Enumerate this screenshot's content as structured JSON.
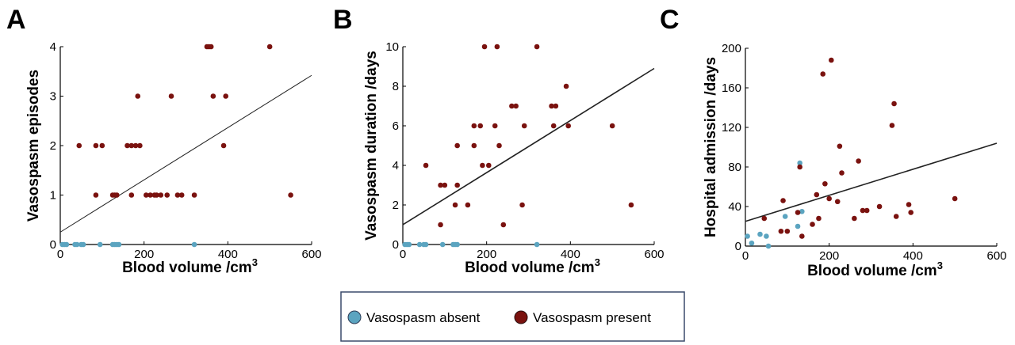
{
  "colors": {
    "absent": "#5BA4C0",
    "present": "#7A120F",
    "axis": "#000000",
    "legend_border": "#3A4A6B"
  },
  "legend": {
    "absent_label": "Vasospasm absent",
    "present_label": "Vasospasm present"
  },
  "chart_data": [
    {
      "panel": "A",
      "type": "scatter",
      "xlabel": "Blood volume /cm",
      "xlabel_sup": "3",
      "ylabel": "Vasospasm episodes",
      "xlim": [
        0,
        600
      ],
      "ylim": [
        0,
        4
      ],
      "xticks": [
        0,
        200,
        400,
        600
      ],
      "yticks": [
        0,
        1,
        2,
        3,
        4
      ],
      "fit_line": [
        [
          0,
          0.25
        ],
        [
          600,
          3.42
        ]
      ],
      "absent": [
        [
          5,
          0
        ],
        [
          10,
          0
        ],
        [
          15,
          0
        ],
        [
          35,
          0
        ],
        [
          40,
          0
        ],
        [
          50,
          0
        ],
        [
          55,
          0
        ],
        [
          95,
          0
        ],
        [
          125,
          0
        ],
        [
          130,
          0
        ],
        [
          135,
          0
        ],
        [
          140,
          0
        ],
        [
          320,
          0
        ]
      ],
      "present": [
        [
          45,
          2
        ],
        [
          85,
          1
        ],
        [
          85,
          2
        ],
        [
          100,
          2
        ],
        [
          125,
          1
        ],
        [
          130,
          1
        ],
        [
          135,
          1
        ],
        [
          160,
          2
        ],
        [
          170,
          1
        ],
        [
          170,
          2
        ],
        [
          180,
          2
        ],
        [
          185,
          3
        ],
        [
          190,
          2
        ],
        [
          205,
          1
        ],
        [
          215,
          1
        ],
        [
          225,
          1
        ],
        [
          230,
          1
        ],
        [
          240,
          1
        ],
        [
          255,
          1
        ],
        [
          265,
          3
        ],
        [
          280,
          1
        ],
        [
          290,
          1
        ],
        [
          320,
          1
        ],
        [
          350,
          4
        ],
        [
          355,
          4
        ],
        [
          360,
          4
        ],
        [
          365,
          3
        ],
        [
          390,
          2
        ],
        [
          395,
          3
        ],
        [
          500,
          4
        ],
        [
          550,
          1
        ]
      ]
    },
    {
      "panel": "B",
      "type": "scatter",
      "xlabel": "Blood volume /cm",
      "xlabel_sup": "3",
      "ylabel": "Vasospasm duration /days",
      "xlim": [
        0,
        600
      ],
      "ylim": [
        0,
        10
      ],
      "xticks": [
        0,
        200,
        400,
        600
      ],
      "yticks": [
        0,
        2,
        4,
        6,
        8,
        10
      ],
      "fit_line": [
        [
          0,
          1.0
        ],
        [
          600,
          8.9
        ]
      ],
      "absent": [
        [
          5,
          0
        ],
        [
          10,
          0
        ],
        [
          15,
          0
        ],
        [
          40,
          0
        ],
        [
          50,
          0
        ],
        [
          55,
          0
        ],
        [
          95,
          0
        ],
        [
          120,
          0
        ],
        [
          125,
          0
        ],
        [
          130,
          0
        ],
        [
          320,
          0
        ]
      ],
      "present": [
        [
          55,
          4
        ],
        [
          90,
          1
        ],
        [
          90,
          3
        ],
        [
          100,
          3
        ],
        [
          125,
          2
        ],
        [
          130,
          3
        ],
        [
          130,
          5
        ],
        [
          155,
          2
        ],
        [
          170,
          5
        ],
        [
          170,
          6
        ],
        [
          185,
          6
        ],
        [
          190,
          4
        ],
        [
          195,
          10
        ],
        [
          205,
          4
        ],
        [
          220,
          6
        ],
        [
          225,
          10
        ],
        [
          230,
          5
        ],
        [
          260,
          7
        ],
        [
          270,
          7
        ],
        [
          285,
          2
        ],
        [
          290,
          6
        ],
        [
          320,
          10
        ],
        [
          355,
          7
        ],
        [
          360,
          6
        ],
        [
          365,
          7
        ],
        [
          390,
          8
        ],
        [
          395,
          6
        ],
        [
          500,
          6
        ],
        [
          545,
          2
        ],
        [
          240,
          1
        ]
      ]
    },
    {
      "panel": "C",
      "type": "scatter",
      "xlabel": "Blood volume /cm",
      "xlabel_sup": "3",
      "ylabel": "Hospital admission /days",
      "xlim": [
        0,
        600
      ],
      "ylim": [
        0,
        200
      ],
      "xticks": [
        0,
        200,
        400,
        600
      ],
      "yticks": [
        0,
        40,
        80,
        120,
        160,
        200
      ],
      "fit_line": [
        [
          0,
          25
        ],
        [
          600,
          104
        ]
      ],
      "absent": [
        [
          5,
          10
        ],
        [
          15,
          3
        ],
        [
          35,
          12
        ],
        [
          50,
          10
        ],
        [
          55,
          0
        ],
        [
          95,
          30
        ],
        [
          125,
          20
        ],
        [
          130,
          84
        ],
        [
          135,
          35
        ]
      ],
      "present": [
        [
          45,
          28
        ],
        [
          85,
          15
        ],
        [
          90,
          46
        ],
        [
          100,
          15
        ],
        [
          125,
          34
        ],
        [
          130,
          80
        ],
        [
          135,
          10
        ],
        [
          160,
          22
        ],
        [
          170,
          52
        ],
        [
          175,
          28
        ],
        [
          185,
          174
        ],
        [
          190,
          63
        ],
        [
          200,
          48
        ],
        [
          205,
          188
        ],
        [
          220,
          45
        ],
        [
          225,
          101
        ],
        [
          230,
          74
        ],
        [
          260,
          28
        ],
        [
          270,
          86
        ],
        [
          280,
          36
        ],
        [
          290,
          36
        ],
        [
          320,
          40
        ],
        [
          350,
          122
        ],
        [
          355,
          144
        ],
        [
          360,
          30
        ],
        [
          390,
          42
        ],
        [
          395,
          34
        ],
        [
          500,
          48
        ]
      ]
    }
  ]
}
